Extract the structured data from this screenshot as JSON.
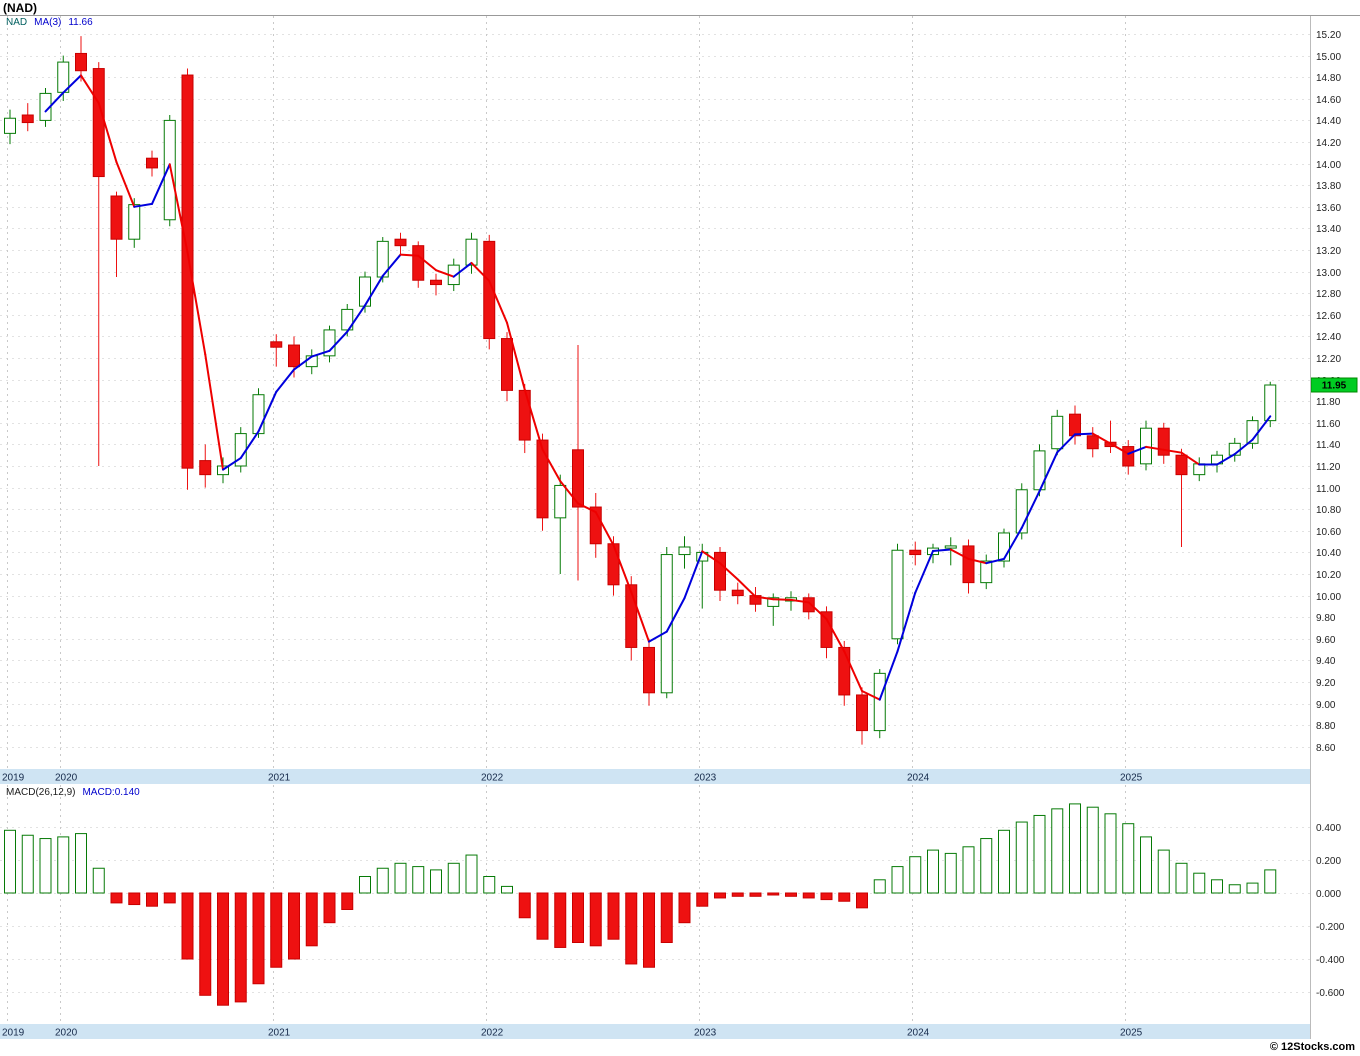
{
  "title": "(NAD)",
  "legend": {
    "symbol": "NAD",
    "ma_text": "MA(3)",
    "ma_value": "11.66"
  },
  "macd_legend": {
    "name": "MACD(26,12,9)",
    "value_text": "MACD:0.140"
  },
  "copyright": "© 12Stocks.com",
  "current_price_label": "11.95",
  "colors": {
    "up": "#067a06",
    "down": "#ee1111",
    "down_stroke": "#c80000",
    "ma_up": "#0000dd",
    "ma_down": "#ee0000",
    "badge_bg": "#00cc22",
    "badge_border": "#008800",
    "strip_bg": "#cfe4f3",
    "grid": "#e2e2e2",
    "year_grid": "#c9c9c9",
    "axis_text": "#222222",
    "year_text": "#15294a",
    "frame": "#999999"
  },
  "chart_data": [
    {
      "type": "candlestick",
      "symbol": "NAD",
      "title": "(NAD)",
      "interval": "monthly",
      "ma_window": 3,
      "ma_last": 11.66,
      "last_close": 11.95,
      "ylim": [
        8.6,
        15.2
      ],
      "grid": "dotted",
      "y_tick_labels": [
        "15.20",
        "15.00",
        "14.80",
        "14.60",
        "14.40",
        "14.20",
        "14.00",
        "13.80",
        "13.60",
        "13.40",
        "13.20",
        "13.00",
        "12.80",
        "12.60",
        "12.40",
        "12.20",
        "12.00",
        "11.80",
        "11.60",
        "11.40",
        "11.20",
        "11.00",
        "10.80",
        "10.60",
        "10.40",
        "10.20",
        "10.00",
        "9.80",
        "9.60",
        "9.40",
        "9.20",
        "9.00",
        "8.80",
        "8.60"
      ],
      "x_year_ticks": [
        {
          "label": "2019",
          "month": 0
        },
        {
          "label": "2020",
          "month": 3
        },
        {
          "label": "2021",
          "month": 15
        },
        {
          "label": "2022",
          "month": 27
        },
        {
          "label": "2023",
          "month": 39
        },
        {
          "label": "2024",
          "month": 51
        },
        {
          "label": "2025",
          "month": 63
        }
      ],
      "candles_ohlc": [
        [
          14.28,
          14.5,
          14.18,
          14.42
        ],
        [
          14.45,
          14.56,
          14.3,
          14.38
        ],
        [
          14.4,
          14.7,
          14.34,
          14.65
        ],
        [
          14.66,
          15.0,
          14.58,
          14.94
        ],
        [
          15.02,
          15.18,
          14.76,
          14.86
        ],
        [
          14.88,
          14.94,
          11.2,
          13.88
        ],
        [
          13.7,
          13.74,
          12.95,
          13.3
        ],
        [
          13.3,
          13.68,
          13.22,
          13.62
        ],
        [
          14.05,
          14.12,
          13.88,
          13.96
        ],
        [
          13.48,
          14.45,
          13.42,
          14.4
        ],
        [
          14.82,
          14.88,
          10.98,
          11.18
        ],
        [
          11.25,
          11.4,
          11.0,
          11.12
        ],
        [
          11.12,
          11.28,
          11.04,
          11.2
        ],
        [
          11.2,
          11.56,
          11.14,
          11.5
        ],
        [
          11.5,
          11.92,
          11.46,
          11.86
        ],
        [
          12.35,
          12.42,
          12.12,
          12.3
        ],
        [
          12.32,
          12.4,
          12.02,
          12.12
        ],
        [
          12.12,
          12.28,
          12.05,
          12.22
        ],
        [
          12.22,
          12.5,
          12.16,
          12.46
        ],
        [
          12.46,
          12.7,
          12.4,
          12.65
        ],
        [
          12.68,
          13.0,
          12.62,
          12.95
        ],
        [
          12.95,
          13.32,
          12.9,
          13.28
        ],
        [
          13.3,
          13.36,
          13.16,
          13.24
        ],
        [
          13.24,
          13.28,
          12.85,
          12.92
        ],
        [
          12.92,
          12.98,
          12.78,
          12.88
        ],
        [
          12.88,
          13.12,
          12.82,
          13.06
        ],
        [
          13.06,
          13.36,
          12.98,
          13.3
        ],
        [
          13.28,
          13.34,
          12.28,
          12.38
        ],
        [
          12.38,
          12.44,
          11.8,
          11.9
        ],
        [
          11.9,
          11.96,
          11.32,
          11.44
        ],
        [
          11.44,
          11.5,
          10.6,
          10.72
        ],
        [
          10.72,
          11.12,
          10.2,
          11.02
        ],
        [
          11.35,
          12.32,
          10.14,
          10.82
        ],
        [
          10.82,
          10.95,
          10.35,
          10.48
        ],
        [
          10.48,
          10.55,
          10.0,
          10.1
        ],
        [
          10.1,
          10.18,
          9.4,
          9.52
        ],
        [
          9.52,
          9.6,
          8.98,
          9.1
        ],
        [
          9.1,
          10.45,
          9.05,
          10.38
        ],
        [
          10.38,
          10.55,
          10.25,
          10.45
        ],
        [
          10.32,
          10.48,
          9.88,
          10.4
        ],
        [
          10.4,
          10.45,
          9.95,
          10.05
        ],
        [
          10.05,
          10.12,
          9.92,
          10.0
        ],
        [
          10.0,
          10.08,
          9.85,
          9.92
        ],
        [
          9.9,
          10.02,
          9.72,
          9.98
        ],
        [
          9.95,
          10.04,
          9.86,
          9.98
        ],
        [
          9.98,
          10.02,
          9.78,
          9.85
        ],
        [
          9.85,
          9.9,
          9.42,
          9.52
        ],
        [
          9.52,
          9.58,
          8.98,
          9.08
        ],
        [
          9.08,
          9.15,
          8.62,
          8.75
        ],
        [
          8.75,
          9.32,
          8.68,
          9.28
        ],
        [
          9.6,
          10.48,
          9.55,
          10.42
        ],
        [
          10.42,
          10.5,
          10.28,
          10.38
        ],
        [
          10.38,
          10.48,
          10.3,
          10.44
        ],
        [
          10.44,
          10.54,
          10.28,
          10.46
        ],
        [
          10.46,
          10.52,
          10.02,
          10.12
        ],
        [
          10.12,
          10.38,
          10.06,
          10.32
        ],
        [
          10.32,
          10.62,
          10.26,
          10.58
        ],
        [
          10.58,
          11.04,
          10.52,
          10.98
        ],
        [
          10.98,
          11.4,
          10.92,
          11.34
        ],
        [
          11.36,
          11.72,
          11.3,
          11.66
        ],
        [
          11.68,
          11.76,
          11.4,
          11.48
        ],
        [
          11.48,
          11.56,
          11.28,
          11.36
        ],
        [
          11.42,
          11.62,
          11.32,
          11.38
        ],
        [
          11.38,
          11.44,
          11.12,
          11.2
        ],
        [
          11.22,
          11.62,
          11.16,
          11.55
        ],
        [
          11.55,
          11.6,
          11.22,
          11.3
        ],
        [
          11.3,
          11.36,
          10.45,
          11.12
        ],
        [
          11.12,
          11.28,
          11.06,
          11.22
        ],
        [
          11.22,
          11.34,
          11.14,
          11.3
        ],
        [
          11.3,
          11.46,
          11.24,
          11.41
        ],
        [
          11.41,
          11.66,
          11.36,
          11.62
        ],
        [
          11.62,
          11.98,
          11.56,
          11.95
        ]
      ]
    },
    {
      "type": "bar",
      "name": "MACD(26,12,9)",
      "last_value": 0.14,
      "ylim": [
        -0.7,
        0.56
      ],
      "grid": "dotted",
      "y_tick_labels": [
        "0.400",
        "0.200",
        "0.000",
        "-0.200",
        "-0.400",
        "-0.600"
      ],
      "values": [
        0.38,
        0.35,
        0.33,
        0.34,
        0.36,
        0.15,
        -0.06,
        -0.07,
        -0.08,
        -0.06,
        -0.4,
        -0.62,
        -0.68,
        -0.66,
        -0.55,
        -0.45,
        -0.4,
        -0.32,
        -0.18,
        -0.1,
        0.1,
        0.15,
        0.18,
        0.16,
        0.14,
        0.18,
        0.23,
        0.1,
        0.04,
        -0.15,
        -0.28,
        -0.33,
        -0.3,
        -0.32,
        -0.28,
        -0.43,
        -0.45,
        -0.3,
        -0.18,
        -0.08,
        -0.03,
        -0.02,
        -0.02,
        -0.01,
        -0.02,
        -0.03,
        -0.04,
        -0.05,
        -0.09,
        0.08,
        0.16,
        0.22,
        0.26,
        0.24,
        0.28,
        0.33,
        0.38,
        0.43,
        0.47,
        0.51,
        0.54,
        0.52,
        0.48,
        0.42,
        0.34,
        0.26,
        0.18,
        0.12,
        0.08,
        0.05,
        0.06,
        0.14
      ]
    }
  ]
}
